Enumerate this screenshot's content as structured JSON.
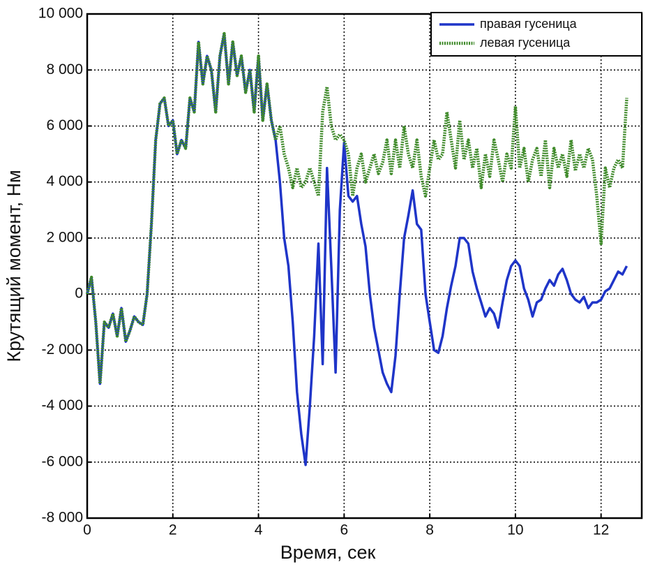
{
  "chart_data": {
    "type": "line",
    "xlabel": "Время, сек",
    "ylabel": "Крутящий момент, Нм",
    "x": [
      0,
      0.1,
      0.2,
      0.3,
      0.4,
      0.5,
      0.6,
      0.7,
      0.8,
      0.9,
      1,
      1.1,
      1.2,
      1.3,
      1.4,
      1.5,
      1.6,
      1.7,
      1.8,
      1.9,
      2,
      2.1,
      2.2,
      2.3,
      2.4,
      2.5,
      2.6,
      2.7,
      2.8,
      2.9,
      3,
      3.1,
      3.2,
      3.3,
      3.4,
      3.5,
      3.6,
      3.7,
      3.8,
      3.9,
      4,
      4.1,
      4.2,
      4.3,
      4.4,
      4.5,
      4.6,
      4.7,
      4.8,
      4.9,
      5,
      5.1,
      5.2,
      5.3,
      5.4,
      5.5,
      5.6,
      5.7,
      5.8,
      5.9,
      6,
      6.1,
      6.2,
      6.3,
      6.4,
      6.5,
      6.6,
      6.7,
      6.8,
      6.9,
      7,
      7.1,
      7.2,
      7.3,
      7.4,
      7.5,
      7.6,
      7.7,
      7.8,
      7.9,
      8,
      8.1,
      8.2,
      8.3,
      8.4,
      8.5,
      8.6,
      8.7,
      8.8,
      8.9,
      9,
      9.1,
      9.2,
      9.3,
      9.4,
      9.5,
      9.6,
      9.7,
      9.8,
      9.9,
      10,
      10.1,
      10.2,
      10.3,
      10.4,
      10.5,
      10.6,
      10.7,
      10.8,
      10.9,
      11,
      11.1,
      11.2,
      11.3,
      11.4,
      11.5,
      11.6,
      11.7,
      11.8,
      11.9,
      12,
      12.1,
      12.2,
      12.3,
      12.4,
      12.5,
      12.6
    ],
    "series": [
      {
        "name": "правая гусеница",
        "color": "#1f35c8",
        "dashed": false,
        "values": [
          0,
          600,
          -1000,
          -3200,
          -1000,
          -1200,
          -700,
          -1500,
          -500,
          -1700,
          -1300,
          -800,
          -1000,
          -1100,
          0,
          2500,
          5500,
          6800,
          7000,
          6000,
          6200,
          5000,
          5500,
          5200,
          7000,
          6500,
          9000,
          7500,
          8500,
          8000,
          6500,
          8500,
          9300,
          7500,
          9000,
          7800,
          8500,
          7200,
          8000,
          6500,
          8500,
          6200,
          7500,
          6200,
          5500,
          4000,
          2000,
          1000,
          -1000,
          -3500,
          -5000,
          -6100,
          -4000,
          -1500,
          1800,
          -2500,
          4500,
          1000,
          -2800,
          3000,
          5400,
          3500,
          3300,
          3500,
          2500,
          1700,
          0,
          -1200,
          -2000,
          -2800,
          -3200,
          -3500,
          -2200,
          0,
          2000,
          2800,
          3700,
          2500,
          2300,
          0,
          -1000,
          -2000,
          -2100,
          -1500,
          -500,
          300,
          1000,
          2000,
          2000,
          1800,
          800,
          200,
          -300,
          -800,
          -500,
          -700,
          -1200,
          -300,
          500,
          1000,
          1200,
          1000,
          200,
          -200,
          -800,
          -300,
          -200,
          200,
          500,
          300,
          700,
          900,
          500,
          0,
          -200,
          -300,
          -100,
          -500,
          -300,
          -300,
          -200,
          100,
          200,
          500,
          800,
          700,
          1000
        ]
      },
      {
        "name": "левая гусеница",
        "color": "#3f8a2a",
        "dashed": true,
        "values": [
          0,
          600,
          -1000,
          -3200,
          -1000,
          -1200,
          -700,
          -1500,
          -500,
          -1700,
          -1300,
          -800,
          -1000,
          -1100,
          0,
          2500,
          5500,
          6800,
          7000,
          6000,
          6200,
          5000,
          5500,
          5200,
          7000,
          6500,
          9000,
          7500,
          8500,
          8000,
          6500,
          8500,
          9300,
          7500,
          9000,
          7800,
          8500,
          7200,
          8000,
          6500,
          8500,
          6200,
          7500,
          6200,
          5500,
          6000,
          5000,
          4500,
          3800,
          4500,
          3800,
          4000,
          4500,
          4000,
          3500,
          6500,
          7400,
          6000,
          5500,
          5700,
          5500,
          5000,
          3500,
          4500,
          5000,
          4000,
          4500,
          5000,
          4300,
          4700,
          5500,
          4300,
          5500,
          4500,
          6000,
          5000,
          4500,
          5500,
          4200,
          3500,
          4500,
          5500,
          4800,
          5000,
          6500,
          5500,
          4500,
          6200,
          4800,
          5500,
          4500,
          5200,
          3800,
          5000,
          4200,
          5500,
          4800,
          4000,
          5000,
          4500,
          6700,
          4500,
          5200,
          4000,
          4800,
          5200,
          4200,
          5500,
          3800,
          5200,
          4500,
          5000,
          4200,
          5500,
          4400,
          5000,
          4500,
          5200,
          4800,
          3500,
          1800,
          4500,
          3800,
          4500,
          4800,
          4500,
          7000
        ]
      }
    ],
    "xlim": [
      0,
      12.95
    ],
    "ylim": [
      -8000,
      10000
    ],
    "xticks": [
      0,
      2,
      4,
      6,
      8,
      10,
      12
    ],
    "yticks": [
      {
        "value": -8000,
        "label": "-8 000"
      },
      {
        "value": -6000,
        "label": "-6 000"
      },
      {
        "value": -4000,
        "label": "-4 000"
      },
      {
        "value": -2000,
        "label": "-2 000"
      },
      0,
      {
        "value": 2000,
        "label": "2 000"
      },
      {
        "value": 4000,
        "label": "4 000"
      },
      {
        "value": 6000,
        "label": "6 000"
      },
      {
        "value": 8000,
        "label": "8 000"
      },
      {
        "value": 10000,
        "label": "10 000"
      }
    ],
    "grid": true,
    "legend": "upper right"
  }
}
